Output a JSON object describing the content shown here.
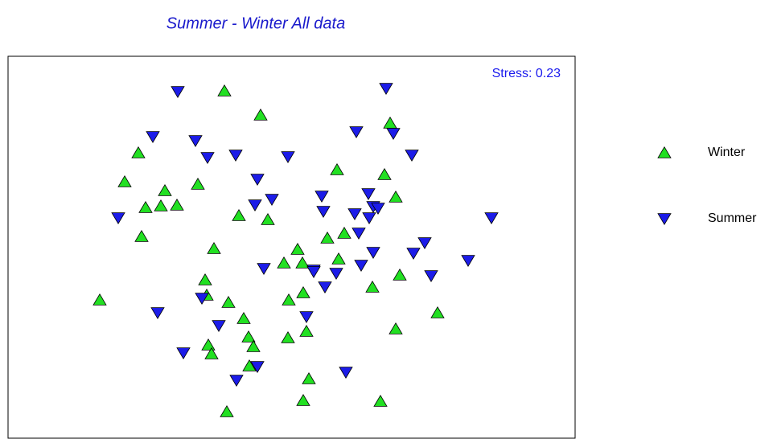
{
  "chart_data": {
    "type": "scatter",
    "title": "Summer - Winter All data",
    "annotation": "Stress: 0.23",
    "xlim": [
      0,
      705
    ],
    "ylim": [
      0,
      475
    ],
    "series": [
      {
        "name": "Winter",
        "color": "#22e022",
        "marker": "triangle-up",
        "x": [
          269,
          314,
          475,
          162,
          409,
          468,
          145,
          236,
          195,
          482,
          171,
          190,
          210,
          287,
          323,
          166,
          397,
          418,
          256,
          360,
          343,
          366,
          411,
          245,
          453,
          487,
          367,
          349,
          114,
          274,
          534,
          293,
          371,
          482,
          299,
          348,
          249,
          305,
          253,
          300,
          374,
          367,
          463,
          272,
          247
        ],
        "values": [
          432,
          402,
          392,
          355,
          334,
          328,
          319,
          316,
          308,
          300,
          287,
          289,
          290,
          277,
          272,
          251,
          249,
          255,
          236,
          235,
          218,
          218,
          223,
          197,
          188,
          203,
          181,
          172,
          172,
          169,
          156,
          149,
          133,
          136,
          126,
          125,
          116,
          114,
          105,
          90,
          74,
          47,
          46,
          33,
          178
        ]
      },
      {
        "name": "Summer",
        "color": "#1c1ce8",
        "marker": "triangle-down",
        "x": [
          211,
          470,
          180,
          433,
          479,
          233,
          248,
          283,
          348,
          502,
          310,
          390,
          448,
          328,
          307,
          454,
          137,
          392,
          431,
          460,
          449,
          601,
          436,
          518,
          504,
          454,
          572,
          318,
          380,
          408,
          380,
          439,
          526,
          394,
          241,
          186,
          371,
          262,
          218,
          310,
          420,
          284
        ],
        "values": [
          431,
          435,
          375,
          381,
          379,
          370,
          349,
          352,
          350,
          352,
          322,
          301,
          304,
          297,
          290,
          288,
          274,
          282,
          279,
          286,
          274,
          274,
          255,
          243,
          230,
          231,
          221,
          211,
          209,
          205,
          207,
          215,
          202,
          188,
          174,
          156,
          151,
          140,
          106,
          89,
          82,
          72
        ]
      }
    ]
  }
}
